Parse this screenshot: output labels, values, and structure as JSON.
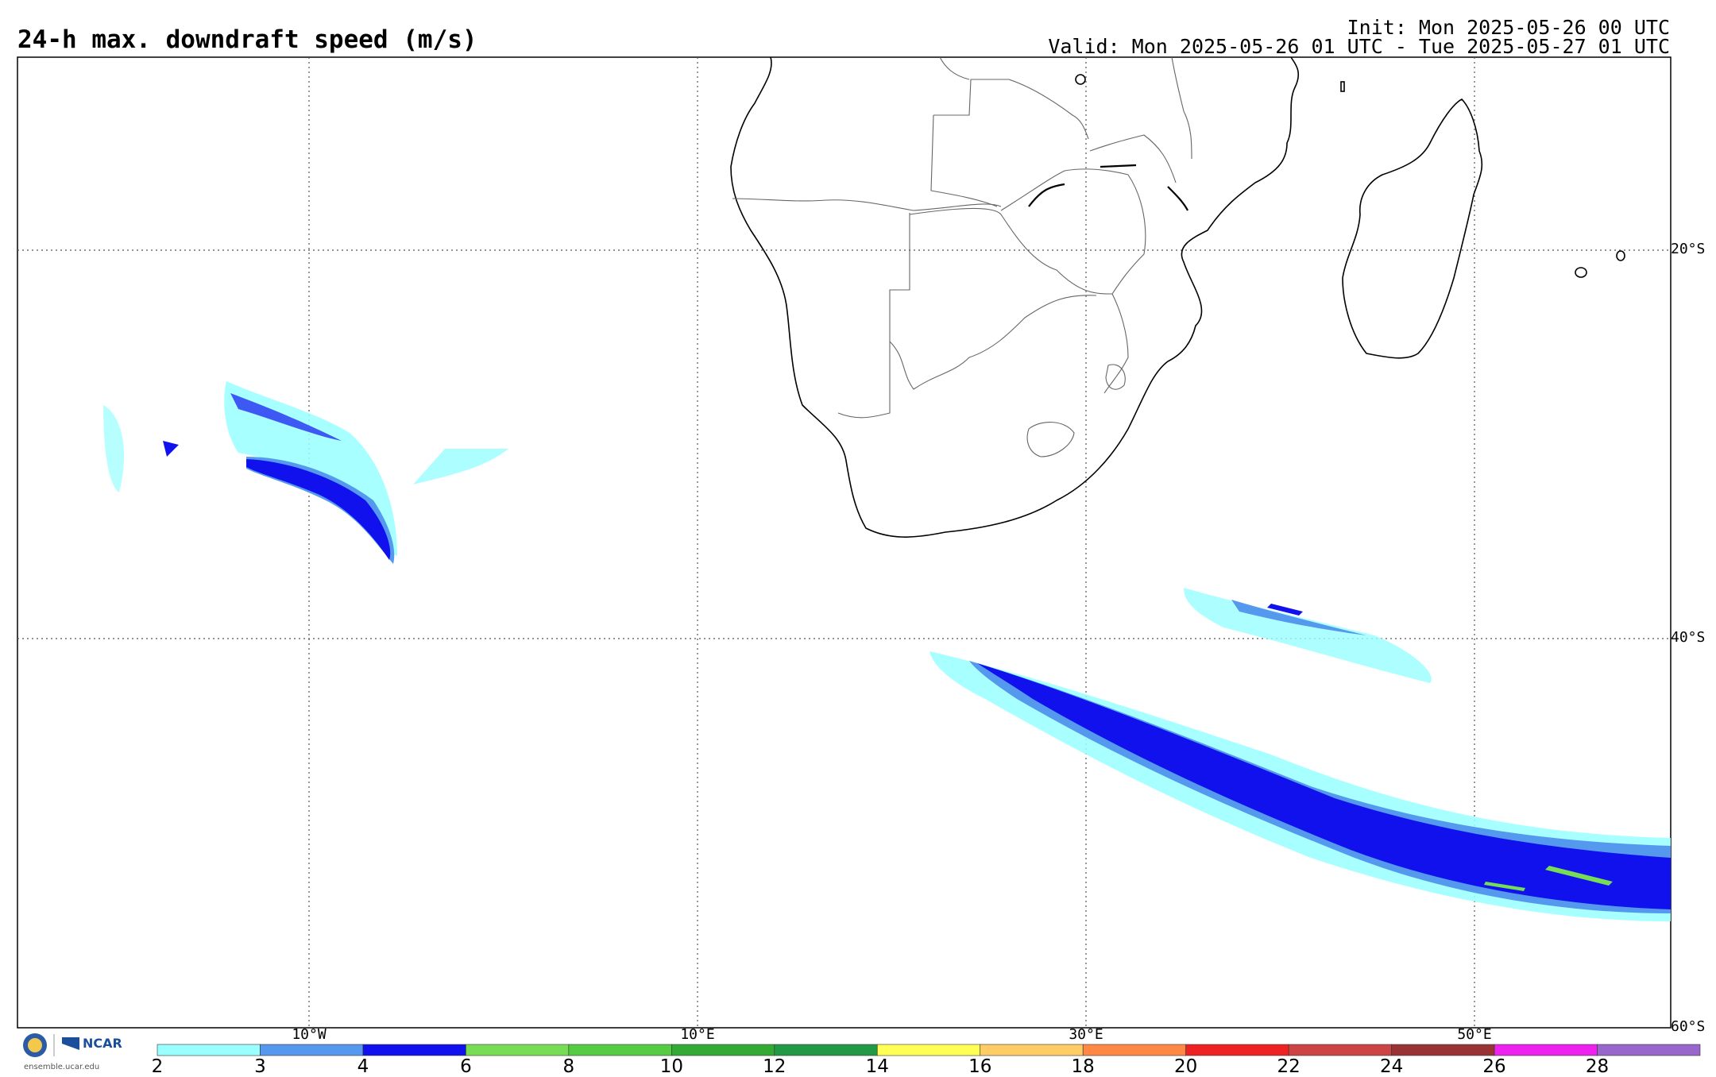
{
  "header": {
    "title": "24-h max. downdraft speed (m/s)",
    "init": "Init: Mon 2025-05-26 00 UTC",
    "valid": "Valid: Mon 2025-05-26 01 UTC - Tue 2025-05-27 01 UTC"
  },
  "map": {
    "lat_labels": [
      "20°S",
      "40°S",
      "60°S"
    ],
    "lon_labels": [
      "10°W",
      "10°E",
      "30°E",
      "50°E"
    ],
    "colors": {
      "c2_3": "#99ffff",
      "c3_4": "#5599ee",
      "c4_6": "#1111ee",
      "c6_8": "#77dd55"
    }
  },
  "colorbar": {
    "labels": [
      "2",
      "3",
      "4",
      "6",
      "8",
      "10",
      "12",
      "14",
      "16",
      "18",
      "20",
      "22",
      "24",
      "26",
      "28"
    ],
    "colors": [
      "#99ffff",
      "#5599ee",
      "#1111ee",
      "#77dd55",
      "#55cc44",
      "#33aa33",
      "#229944",
      "#ffff55",
      "#ffcc66",
      "#ff8844",
      "#ee2222",
      "#cc4444",
      "#993333",
      "#ee22ee",
      "#9966cc"
    ]
  },
  "footer": {
    "org": "NCAR",
    "url": "ensemble.ucar.edu"
  }
}
